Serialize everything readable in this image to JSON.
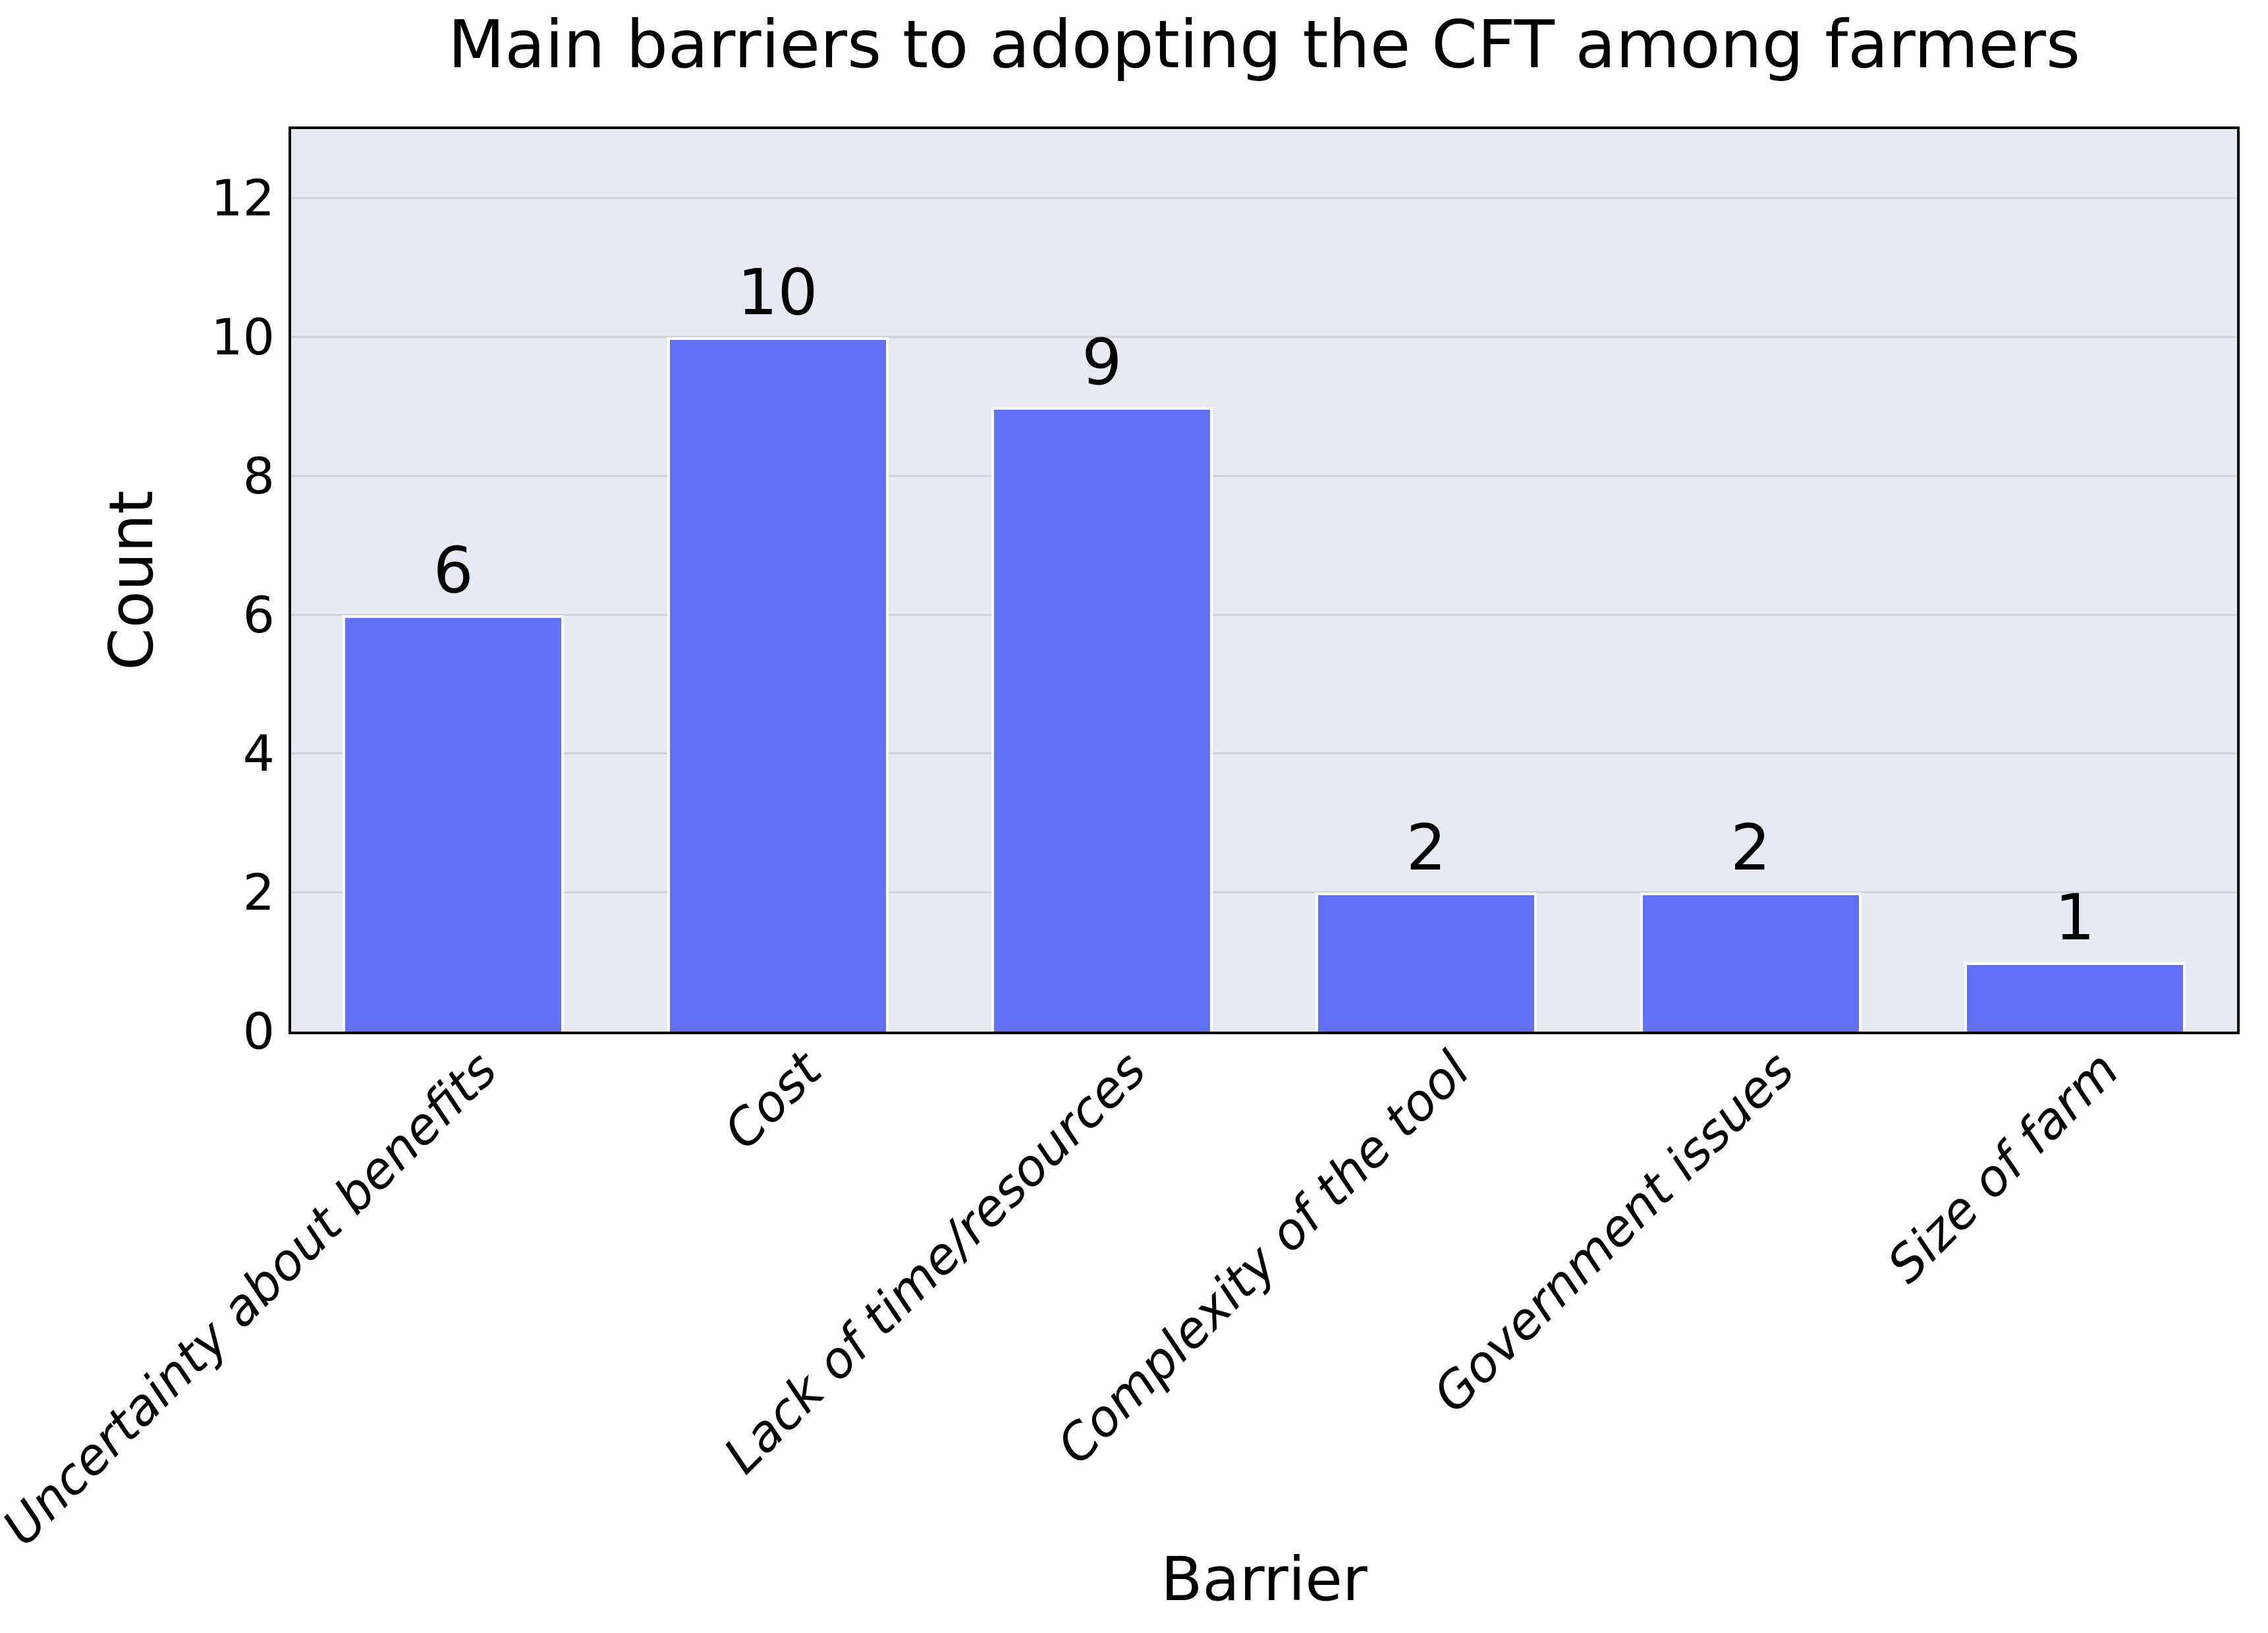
{
  "chart_data": {
    "type": "bar",
    "title": "Main barriers to adopting the CFT among farmers",
    "xlabel": "Barrier",
    "ylabel": "Count",
    "categories": [
      "Uncertainty about benefits",
      "Cost",
      "Lack of time/resources",
      "Complexity of the tool",
      "Government issues",
      "Size of farm"
    ],
    "values": [
      6,
      10,
      9,
      2,
      2,
      1
    ],
    "bar_value_labels": [
      "6",
      "10",
      "9",
      "2",
      "2",
      "1"
    ],
    "yticks": [
      0,
      2,
      4,
      6,
      8,
      10,
      12
    ],
    "ylim": [
      0,
      13
    ],
    "grid": "horizontal-only",
    "legend": "none",
    "x_tick_style": "italic, rotated 45deg",
    "colors": {
      "bar_fill": "#6170f4",
      "bar_edge": "#ffffff",
      "plot_background": "#e6eaf3",
      "grid_line": "#cdd2dc",
      "frame": "#000000",
      "text": "#000000",
      "figure_background": "#ffffff"
    }
  }
}
